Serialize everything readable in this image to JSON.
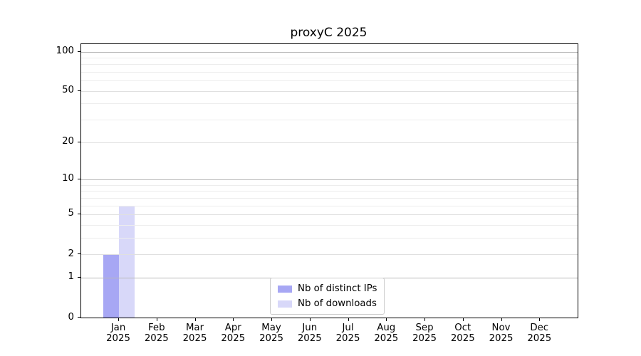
{
  "chart_data": {
    "type": "bar",
    "title": "proxyC 2025",
    "x_categories": [
      "Jan",
      "Feb",
      "Mar",
      "Apr",
      "May",
      "Jun",
      "Jul",
      "Aug",
      "Sep",
      "Oct",
      "Nov",
      "Dec"
    ],
    "x_year": "2025",
    "series": [
      {
        "name": "Nb of distinct IPs",
        "color": "#a7a7f4",
        "values": [
          2,
          0,
          0,
          0,
          0,
          0,
          0,
          0,
          0,
          0,
          0,
          0
        ]
      },
      {
        "name": "Nb of downloads",
        "color": "#d8d8f9",
        "values": [
          6,
          0,
          0,
          0,
          0,
          0,
          0,
          0,
          0,
          0,
          0,
          0
        ]
      }
    ],
    "y_scale": "log1p",
    "y_ticks": [
      0,
      1,
      2,
      5,
      10,
      20,
      50,
      100
    ],
    "y_minor_ticks": [
      3,
      4,
      6,
      7,
      8,
      9,
      30,
      40,
      60,
      70,
      80,
      90
    ],
    "ylim": [
      0,
      114
    ],
    "grid": true,
    "legend_position": "lower center"
  },
  "colors": {
    "background": "#ffffff",
    "spine": "#000000",
    "grid_decade": "#b8b8b8",
    "grid_major": "#e0e0e0",
    "grid_minor": "#ededed",
    "text": "#000000",
    "legend_border": "#cccccc"
  }
}
